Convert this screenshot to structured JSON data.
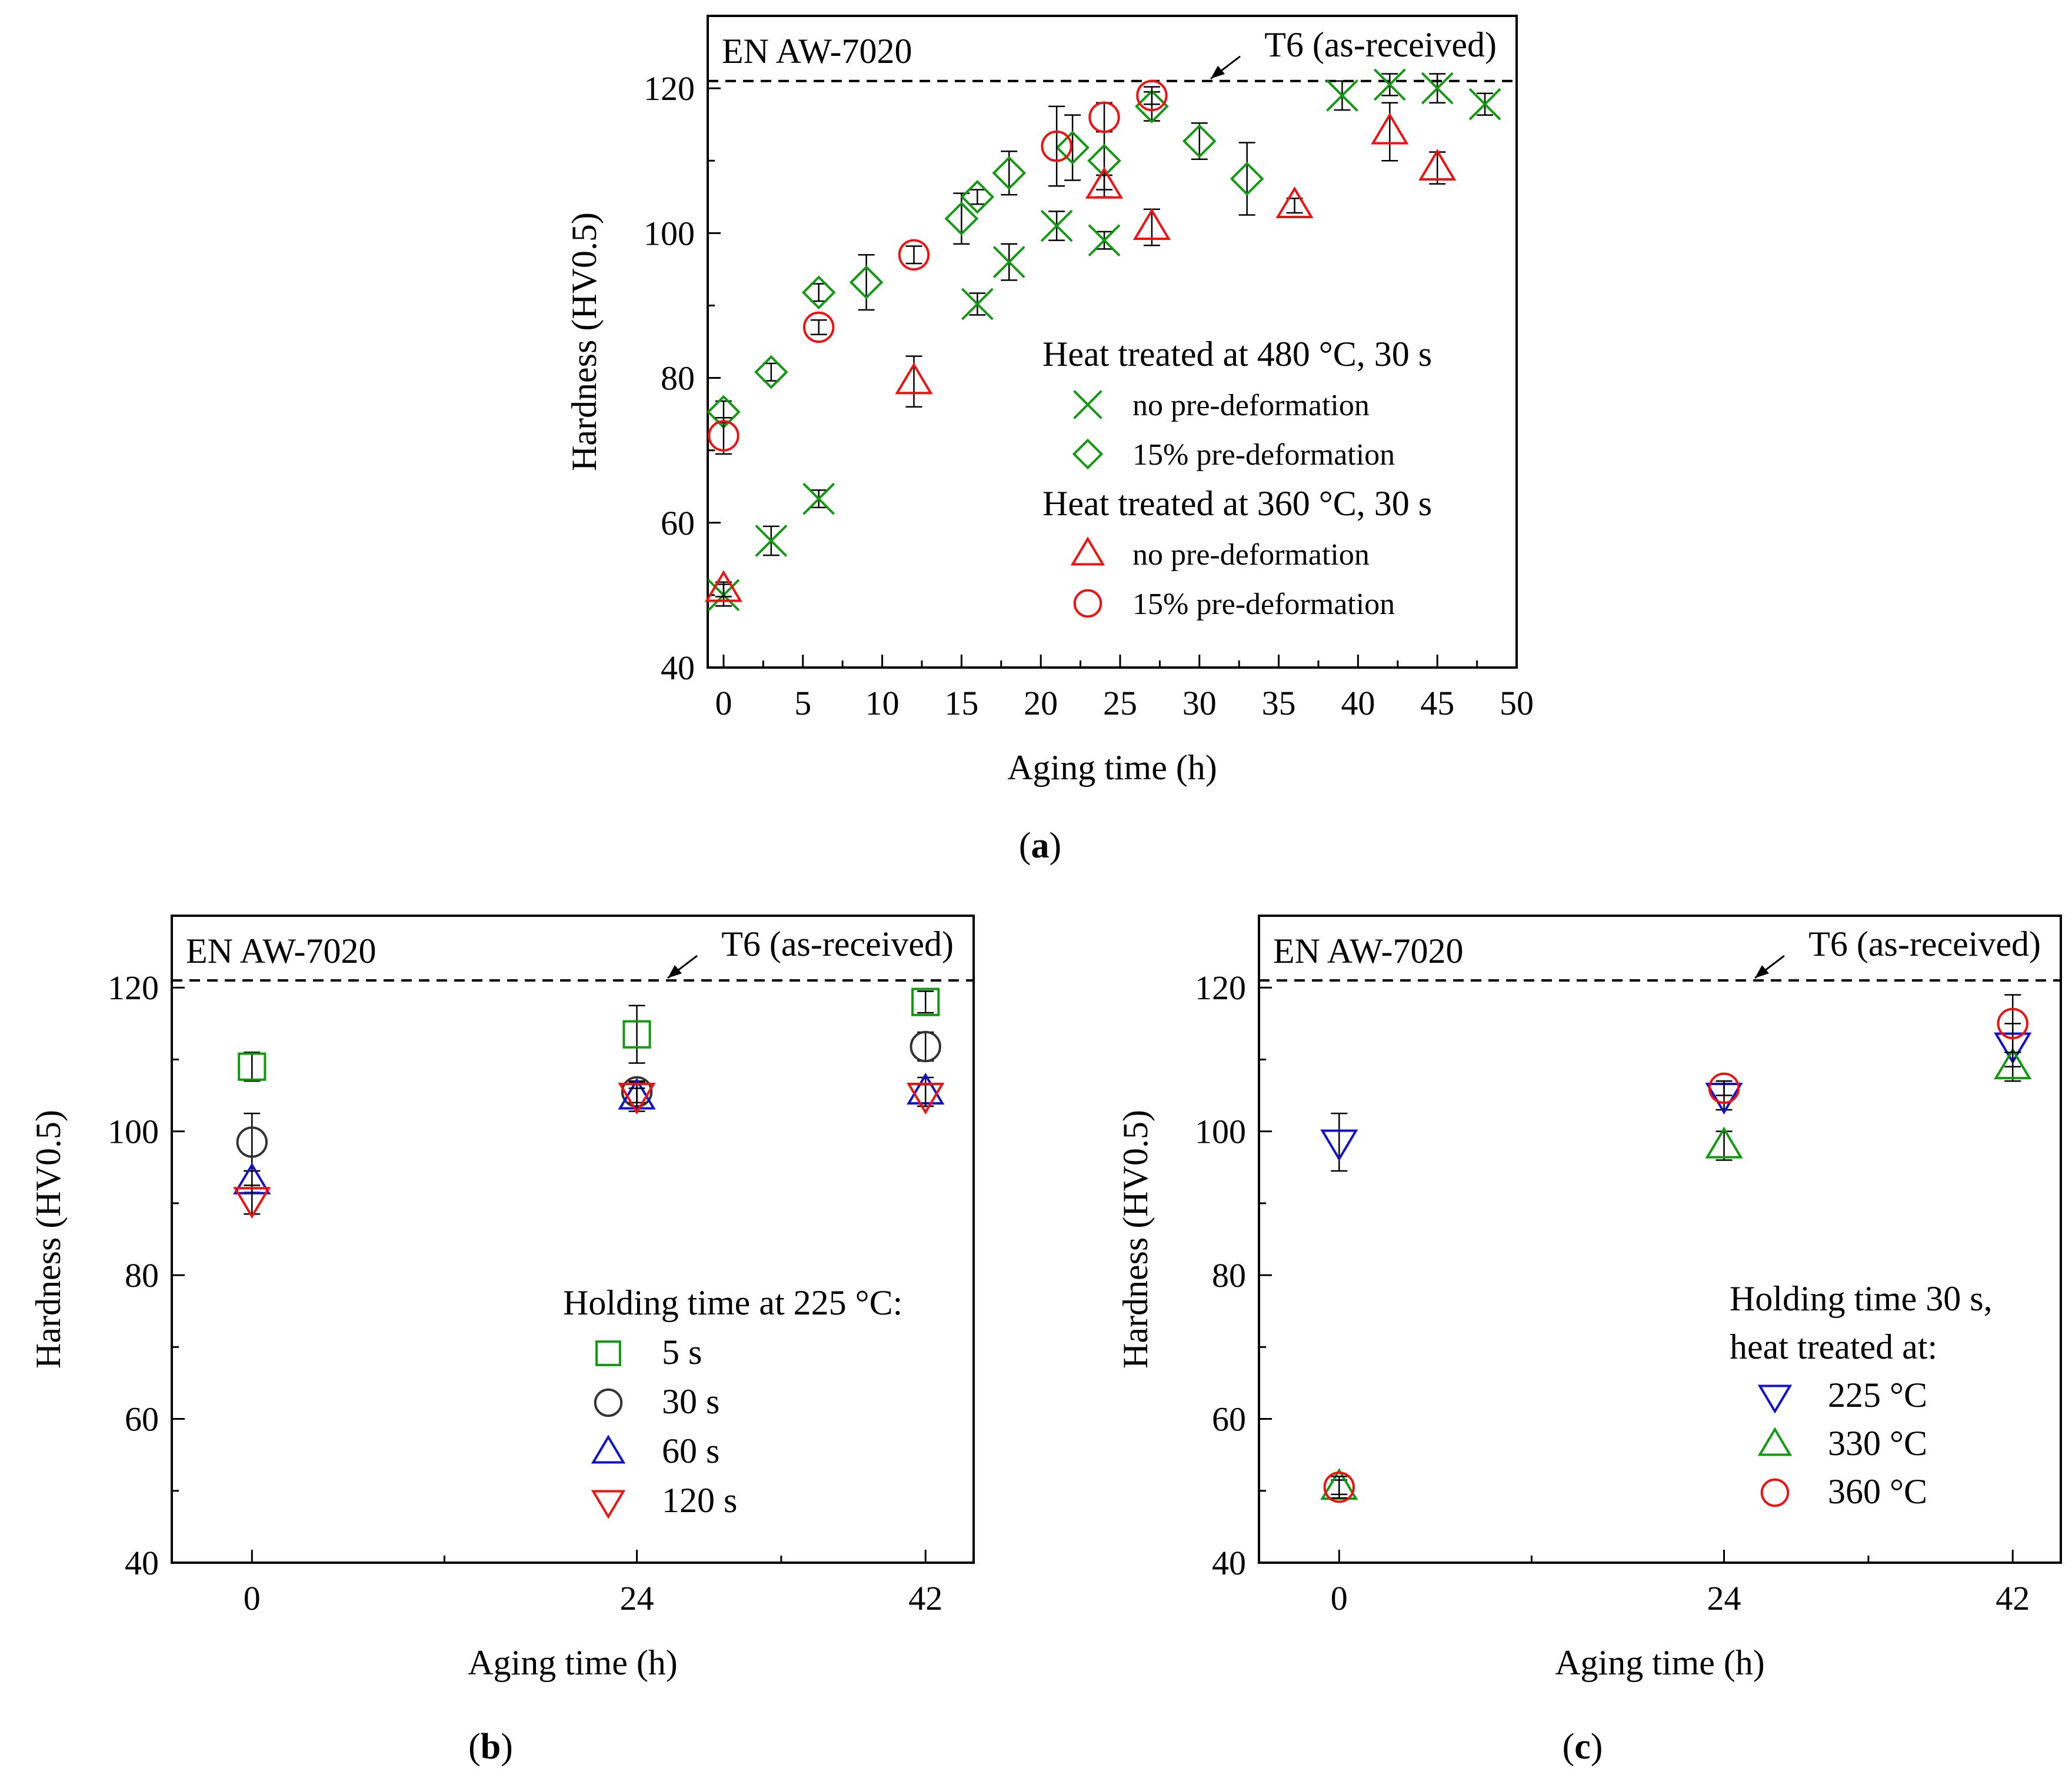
{
  "chart_data": [
    {
      "id": "a",
      "type": "scatter",
      "panel_label": "a",
      "material": "EN AW-7020",
      "reference_label": "T6 (as-received)",
      "reference_value": 121,
      "xlabel": "Aging time (h)",
      "ylabel": "Hardness (HV0.5)",
      "xlim": [
        -1,
        50
      ],
      "ylim": [
        40,
        130
      ],
      "xticks": [
        0,
        5,
        10,
        15,
        20,
        25,
        30,
        35,
        40,
        45,
        50
      ],
      "yticks": [
        40,
        60,
        80,
        100,
        120
      ],
      "legend_groups": [
        {
          "title": "Heat treated at 480 °C, 30 s",
          "series": [
            0,
            1
          ]
        },
        {
          "title": "Heat treated at 360 °C, 30 s",
          "series": [
            2,
            3
          ]
        }
      ],
      "series": [
        {
          "name": "no pre-deformation",
          "marker": "x",
          "color": "#119911",
          "points": [
            [
              0,
              50,
              1.5
            ],
            [
              3,
              57.5,
              2
            ],
            [
              6,
              63.3,
              1.2
            ],
            [
              16,
              90.2,
              1.5
            ],
            [
              18,
              96,
              2.5
            ],
            [
              21,
              101,
              2
            ],
            [
              24,
              99,
              1.2
            ],
            [
              39,
              119,
              2
            ],
            [
              42,
              120.5,
              1.5
            ],
            [
              45,
              120,
              2
            ],
            [
              48,
              117.8,
              1.5
            ]
          ]
        },
        {
          "name": "15% pre-deformation",
          "marker": "diamond",
          "color": "#119911",
          "points": [
            [
              0,
              75.3,
              1.5
            ],
            [
              3,
              80.8,
              1.2
            ],
            [
              6,
              91.8,
              1.2
            ],
            [
              9,
              93.2,
              3.8
            ],
            [
              15,
              102,
              3.5
            ],
            [
              16,
              105,
              1
            ],
            [
              18,
              108.3,
              3
            ],
            [
              22,
              111.8,
              4.5
            ],
            [
              24,
              110,
              4
            ],
            [
              27,
              117.5,
              2
            ],
            [
              30,
              112.7,
              2.5
            ],
            [
              33,
              107.5,
              5
            ]
          ]
        },
        {
          "name": "no pre-deformation",
          "marker": "triangle-up",
          "color": "#ee1111",
          "points": [
            [
              0,
              50.8,
              1
            ],
            [
              12,
              79.5,
              3.5
            ],
            [
              24,
              106.5,
              1.5
            ],
            [
              27,
              100.8,
              2.5
            ],
            [
              36,
              103.8,
              1
            ],
            [
              42,
              114,
              4
            ],
            [
              45,
              109,
              2.2
            ]
          ]
        },
        {
          "name": "15% pre-deformation",
          "marker": "circle",
          "color": "#ee1111",
          "points": [
            [
              0,
              72,
              2.5
            ],
            [
              6,
              87,
              1
            ],
            [
              12,
              97,
              1.2
            ],
            [
              21,
              112,
              5.5
            ],
            [
              24,
              116,
              2
            ],
            [
              27,
              119,
              1.2
            ]
          ]
        }
      ]
    },
    {
      "id": "b",
      "type": "scatter",
      "panel_label": "b",
      "material": "EN AW-7020",
      "reference_label": "T6 (as-received)",
      "reference_value": 121,
      "xlabel": "Aging time (h)",
      "ylabel": "Hardness (HV0.5)",
      "categories": [
        "0",
        "24",
        "42"
      ],
      "x_values": [
        0,
        24,
        42
      ],
      "xlim": [
        -5,
        45
      ],
      "ylim": [
        40,
        130
      ],
      "xticks": [
        0,
        24,
        42
      ],
      "yticks": [
        40,
        60,
        80,
        100,
        120
      ],
      "legend_title": "Holding time at 225 °C:",
      "series": [
        {
          "name": "5 s",
          "marker": "square",
          "color": "#119911",
          "points": [
            [
              0,
              109,
              2
            ],
            [
              24,
              113.5,
              4
            ],
            [
              42,
              118,
              1.5
            ]
          ]
        },
        {
          "name": "30 s",
          "marker": "circle",
          "color": "#333333",
          "points": [
            [
              0,
              98.5,
              4
            ],
            [
              24,
              105.5,
              1.5
            ],
            [
              42,
              111.8,
              2
            ]
          ]
        },
        {
          "name": "60 s",
          "marker": "triangle-up",
          "color": "#1111cc",
          "points": [
            [
              0,
              93,
              1.5
            ],
            [
              24,
              104.8,
              2
            ],
            [
              42,
              105.5,
              2
            ]
          ]
        },
        {
          "name": "120 s",
          "marker": "triangle-down",
          "color": "#ee1111",
          "points": [
            [
              0,
              90.5,
              2
            ],
            [
              24,
              105,
              1
            ],
            [
              42,
              105,
              1.5
            ]
          ]
        }
      ]
    },
    {
      "id": "c",
      "type": "scatter",
      "panel_label": "c",
      "material": "EN AW-7020",
      "reference_label": "T6 (as-received)",
      "reference_value": 121,
      "xlabel": "Aging time (h)",
      "ylabel": "Hardness (HV0.5)",
      "categories": [
        "0",
        "24",
        "42"
      ],
      "x_values": [
        0,
        24,
        42
      ],
      "xlim": [
        -5,
        45
      ],
      "ylim": [
        40,
        130
      ],
      "xticks": [
        0,
        24,
        42
      ],
      "yticks": [
        40,
        60,
        80,
        100,
        120
      ],
      "legend_title": "Holding time 30 s,",
      "legend_subtitle": "heat treated at:",
      "series": [
        {
          "name": "225 °C",
          "marker": "triangle-down",
          "color": "#1111cc",
          "points": [
            [
              0,
              98.5,
              4
            ],
            [
              24,
              105,
              2
            ],
            [
              42,
              112,
              3
            ]
          ]
        },
        {
          "name": "330 °C",
          "marker": "triangle-up",
          "color": "#119911",
          "points": [
            [
              0,
              50.5,
              1
            ],
            [
              24,
              98,
              2
            ],
            [
              42,
              109,
              2
            ]
          ]
        },
        {
          "name": "360 °C",
          "marker": "circle",
          "color": "#ee1111",
          "points": [
            [
              0,
              50.5,
              1.5
            ],
            [
              24,
              106,
              1
            ],
            [
              42,
              115,
              4
            ]
          ]
        }
      ]
    }
  ]
}
